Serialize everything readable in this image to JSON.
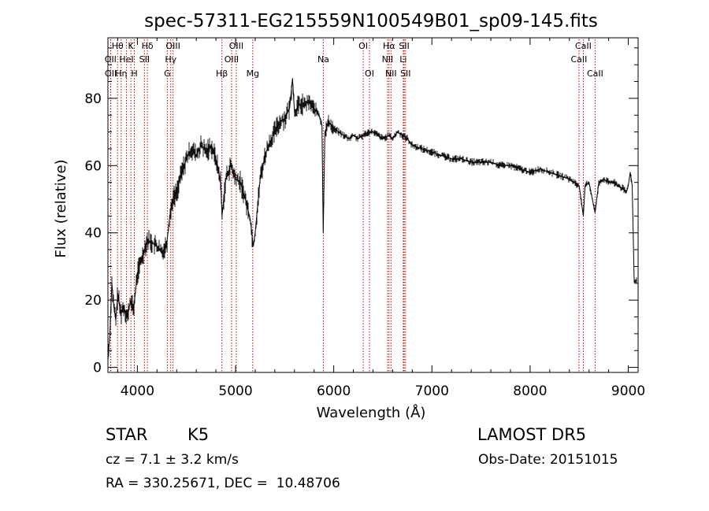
{
  "chart_data": {
    "type": "line",
    "title": "spec-57311-EG215559N100549B01_sp09-145.fits",
    "xlabel": "Wavelength (Å)",
    "ylabel": "Flux (relative)",
    "xlim": [
      3700,
      9100
    ],
    "ylim": [
      -1.5,
      98
    ],
    "xticks": [
      4000,
      5000,
      6000,
      7000,
      8000,
      9000
    ],
    "yticks": [
      0,
      20,
      40,
      60,
      80
    ],
    "grid": false,
    "series": [
      {
        "color": "#000000",
        "x": [
          3700,
          3720,
          3740,
          3760,
          3780,
          3800,
          3830,
          3860,
          3900,
          3930,
          3960,
          4000,
          4050,
          4100,
          4150,
          4200,
          4250,
          4300,
          4330,
          4360,
          4400,
          4450,
          4500,
          4550,
          4600,
          4650,
          4700,
          4750,
          4800,
          4850,
          4862,
          4900,
          4950,
          5000,
          5050,
          5100,
          5150,
          5180,
          5200,
          5250,
          5300,
          5350,
          5400,
          5450,
          5500,
          5550,
          5580,
          5600,
          5650,
          5700,
          5750,
          5800,
          5850,
          5880,
          5893,
          5910,
          5950,
          6000,
          6050,
          6100,
          6150,
          6200,
          6250,
          6300,
          6350,
          6400,
          6450,
          6500,
          6563,
          6600,
          6650,
          6700,
          6750,
          6800,
          6900,
          7000,
          7100,
          7200,
          7300,
          7400,
          7500,
          7600,
          7700,
          7800,
          7900,
          8000,
          8100,
          8200,
          8300,
          8400,
          8450,
          8500,
          8542,
          8560,
          8600,
          8662,
          8700,
          8750,
          8800,
          8850,
          8900,
          8950,
          8980,
          9000,
          9020,
          9040,
          9060
        ],
        "y": [
          2,
          10,
          25,
          18,
          14,
          22,
          16,
          18,
          15,
          20,
          17,
          28,
          33,
          38,
          37,
          36,
          34,
          37,
          45,
          50,
          52,
          58,
          62,
          65,
          63,
          66,
          64,
          66,
          62,
          55,
          45,
          56,
          60,
          56,
          55,
          50,
          44,
          36,
          40,
          56,
          63,
          67,
          70,
          73,
          74,
          77,
          86,
          76,
          78,
          78,
          79,
          77,
          75,
          72,
          40,
          70,
          73,
          71,
          70,
          69,
          68,
          69,
          68,
          69,
          70,
          70,
          69,
          68,
          69,
          68,
          70,
          69,
          68,
          66,
          65,
          64,
          63,
          62,
          62,
          61,
          61,
          61,
          60,
          60,
          59,
          58,
          59,
          58,
          57,
          56,
          55,
          54,
          45,
          54,
          55,
          46,
          55,
          56,
          55,
          55,
          54,
          53,
          52,
          54,
          58,
          54,
          26
        ]
      }
    ],
    "line_labels": [
      {
        "text": "Hθ",
        "x": 3798,
        "row": 1
      },
      {
        "text": "OII",
        "x": 3727,
        "row": 2
      },
      {
        "text": "OII",
        "x": 3729,
        "row": 3
      },
      {
        "text": "Hη",
        "x": 3835,
        "row": 3
      },
      {
        "text": "HeI",
        "x": 3889,
        "row": 2
      },
      {
        "text": "K",
        "x": 3934,
        "row": 1
      },
      {
        "text": "H",
        "x": 3969,
        "row": 3
      },
      {
        "text": "Hδ",
        "x": 4102,
        "row": 1
      },
      {
        "text": "SII",
        "x": 4072,
        "row": 2
      },
      {
        "text": "OIII",
        "x": 4363,
        "row": 1
      },
      {
        "text": "Hγ",
        "x": 4340,
        "row": 2
      },
      {
        "text": "G",
        "x": 4305,
        "row": 3
      },
      {
        "text": "Hβ",
        "x": 4861,
        "row": 3
      },
      {
        "text": "OIII",
        "x": 5007,
        "row": 1
      },
      {
        "text": "OIII",
        "x": 4959,
        "row": 2
      },
      {
        "text": "Mg",
        "x": 5175,
        "row": 3
      },
      {
        "text": "Na",
        "x": 5894,
        "row": 2
      },
      {
        "text": "OI",
        "x": 6300,
        "row": 1
      },
      {
        "text": "OI",
        "x": 6364,
        "row": 3
      },
      {
        "text": "Hα",
        "x": 6563,
        "row": 1
      },
      {
        "text": "NII",
        "x": 6548,
        "row": 2
      },
      {
        "text": "NII",
        "x": 6583,
        "row": 3
      },
      {
        "text": "SII",
        "x": 6717,
        "row": 1
      },
      {
        "text": "Li",
        "x": 6708,
        "row": 2
      },
      {
        "text": "SII",
        "x": 6731,
        "row": 3
      },
      {
        "text": "CaII",
        "x": 8542,
        "row": 1
      },
      {
        "text": "CaII",
        "x": 8498,
        "row": 2
      },
      {
        "text": "CaII",
        "x": 8662,
        "row": 3
      }
    ],
    "line_color": "#c00000"
  },
  "info": {
    "class_label": "STAR",
    "subclass": "K5",
    "survey": "LAMOST DR5",
    "cz": "cz = 7.1 ± 3.2 km/s",
    "obs_date": "Obs-Date: 20151015",
    "coords": "RA = 330.25671, DEC =  10.48706"
  }
}
